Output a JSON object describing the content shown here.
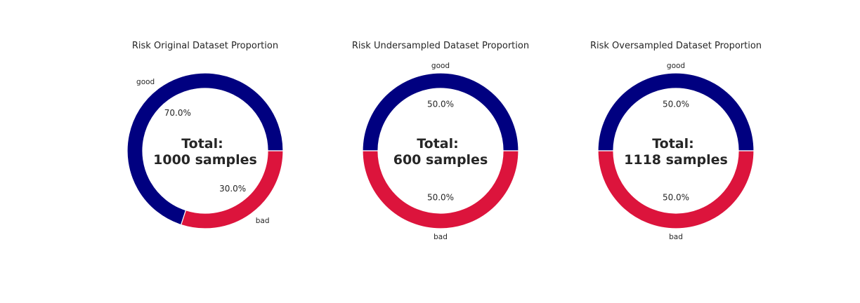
{
  "chart_data": [
    {
      "type": "pie",
      "donut": true,
      "title": "Risk Original Dataset Proportion",
      "categories": [
        "good",
        "bad"
      ],
      "values": [
        70.0,
        30.0
      ],
      "value_labels": [
        "70.0%",
        "30.0%"
      ],
      "colors": [
        "#000080",
        "#dc143c"
      ],
      "center_text": [
        "Total:",
        "1000 samples"
      ]
    },
    {
      "type": "pie",
      "donut": true,
      "title": "Risk Undersampled Dataset Proportion",
      "categories": [
        "good",
        "bad"
      ],
      "values": [
        50.0,
        50.0
      ],
      "value_labels": [
        "50.0%",
        "50.0%"
      ],
      "colors": [
        "#000080",
        "#dc143c"
      ],
      "center_text": [
        "Total:",
        "600 samples"
      ]
    },
    {
      "type": "pie",
      "donut": true,
      "title": "Risk Oversampled Dataset Proportion",
      "categories": [
        "good",
        "bad"
      ],
      "values": [
        50.0,
        50.0
      ],
      "value_labels": [
        "50.0%",
        "50.0%"
      ],
      "colors": [
        "#000080",
        "#dc143c"
      ],
      "center_text": [
        "Total:",
        "1118 samples"
      ]
    }
  ]
}
